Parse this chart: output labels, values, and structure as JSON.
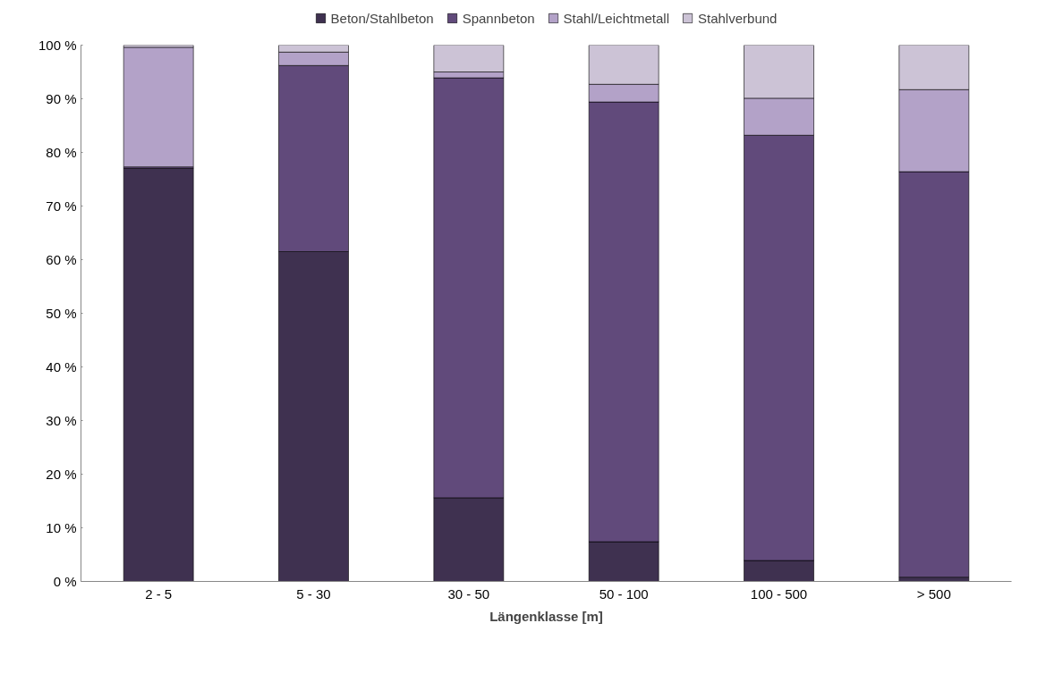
{
  "chart_data": {
    "type": "bar",
    "stacked": true,
    "xlabel": "Längenklasse [m]",
    "categories": [
      "2 - 5",
      "5 - 30",
      "30 - 50",
      "50 - 100",
      "100 - 500",
      "> 500"
    ],
    "series": [
      {
        "name": "Beton/Stahlbeton",
        "color": "#3f3150",
        "values": [
          77.0,
          61.5,
          15.6,
          7.4,
          3.9,
          0.8
        ]
      },
      {
        "name": "Spannbeton",
        "color": "#614a7b",
        "values": [
          0.3,
          34.7,
          78.3,
          82.0,
          79.3,
          75.6
        ]
      },
      {
        "name": "Stahl/Leichtmetall",
        "color": "#b3a2c8",
        "values": [
          22.3,
          2.5,
          1.1,
          3.3,
          6.9,
          15.3
        ]
      },
      {
        "name": "Stahlverbund",
        "color": "#ccc3d6",
        "values": [
          0.4,
          1.3,
          5.0,
          7.3,
          9.9,
          8.3
        ]
      }
    ],
    "ylim": [
      0,
      100
    ],
    "yticks": [
      {
        "value": 0,
        "label": "0 %"
      },
      {
        "value": 10,
        "label": "10 %"
      },
      {
        "value": 20,
        "label": "20 %"
      },
      {
        "value": 30,
        "label": "30 %"
      },
      {
        "value": 40,
        "label": "40 %"
      },
      {
        "value": 50,
        "label": "50 %"
      },
      {
        "value": 60,
        "label": "60 %"
      },
      {
        "value": 70,
        "label": "70 %"
      },
      {
        "value": 80,
        "label": "80 %"
      },
      {
        "value": 90,
        "label": "90 %"
      },
      {
        "value": 100,
        "label": "100 %"
      }
    ],
    "grid": false,
    "legend": "top"
  }
}
